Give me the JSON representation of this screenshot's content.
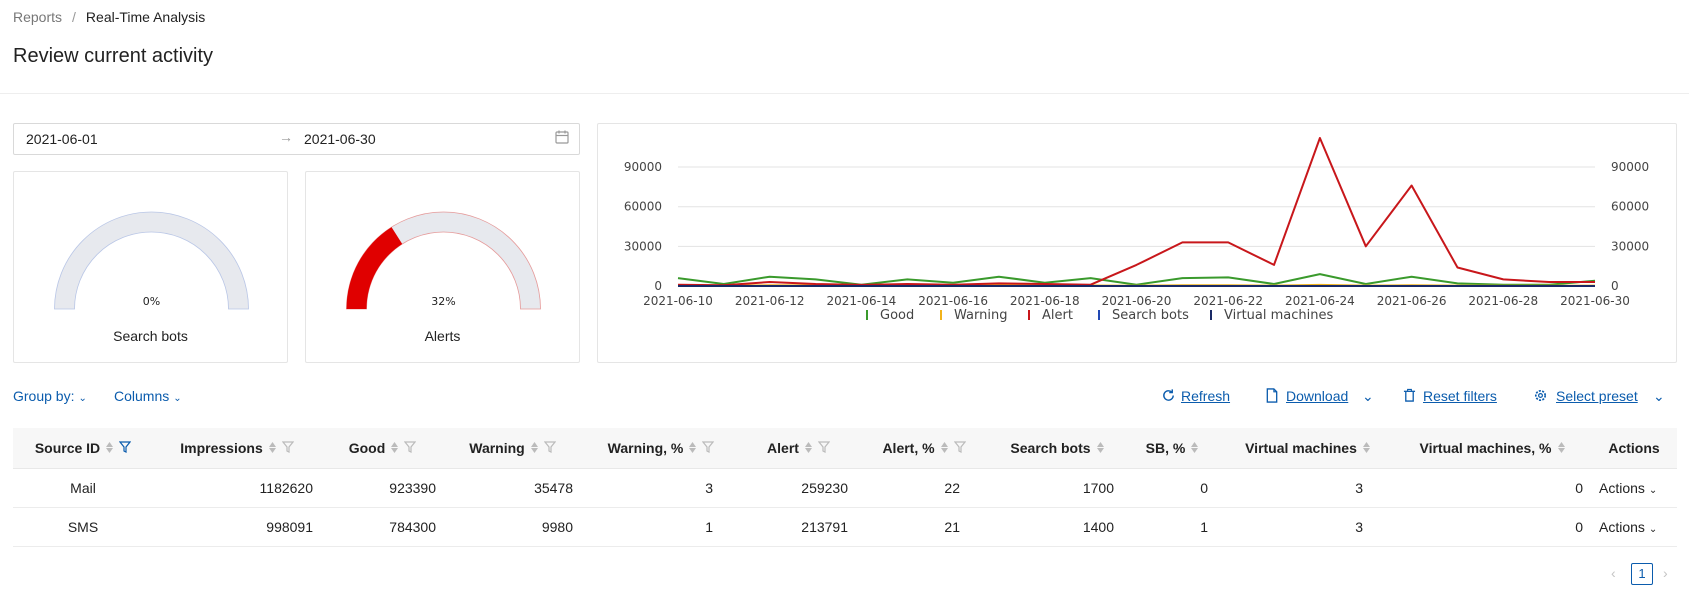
{
  "breadcrumb": {
    "parent": "Reports",
    "separator": "/",
    "current": "Real-Time Analysis"
  },
  "page_title": "Review current activity",
  "date_range": {
    "start": "2021-06-01",
    "arrow": "→",
    "end": "2021-06-30"
  },
  "gauges": [
    {
      "label": "Search bots",
      "percent_text": "0%",
      "value": 0,
      "color": "#cccccc"
    },
    {
      "label": "Alerts",
      "percent_text": "32%",
      "value": 0.32,
      "color": "#e00000"
    }
  ],
  "chart_data": {
    "type": "line",
    "x": [
      "2021-06-10",
      "2021-06-11",
      "2021-06-12",
      "2021-06-13",
      "2021-06-14",
      "2021-06-15",
      "2021-06-16",
      "2021-06-17",
      "2021-06-18",
      "2021-06-19",
      "2021-06-20",
      "2021-06-21",
      "2021-06-22",
      "2021-06-23",
      "2021-06-24",
      "2021-06-25",
      "2021-06-26",
      "2021-06-27",
      "2021-06-28",
      "2021-06-29",
      "2021-06-30"
    ],
    "x_ticks": [
      "2021-06-10",
      "2021-06-12",
      "2021-06-14",
      "2021-06-16",
      "2021-06-18",
      "2021-06-20",
      "2021-06-22",
      "2021-06-24",
      "2021-06-26",
      "2021-06-28",
      "2021-06-30"
    ],
    "y_ticks": [
      0,
      30000,
      60000,
      90000
    ],
    "ylim": [
      0,
      115000
    ],
    "grid": true,
    "legend_position": "bottom",
    "series": [
      {
        "name": "Good",
        "color": "#3a9a2c",
        "values": [
          6000,
          1500,
          7000,
          5000,
          1000,
          5000,
          2500,
          7000,
          2500,
          6000,
          1000,
          6000,
          6500,
          1500,
          9000,
          1500,
          7000,
          2000,
          1000,
          1000,
          4000
        ]
      },
      {
        "name": "Warning",
        "color": "#f2b31b",
        "values": [
          500,
          300,
          500,
          400,
          200,
          400,
          300,
          500,
          300,
          400,
          200,
          500,
          500,
          300,
          800,
          300,
          600,
          300,
          200,
          200,
          300
        ]
      },
      {
        "name": "Alert",
        "color": "#c8171b",
        "values": [
          1000,
          500,
          3000,
          1500,
          800,
          1500,
          1000,
          2000,
          1500,
          1000,
          16000,
          33000,
          33000,
          16000,
          112000,
          30000,
          76000,
          14000,
          5000,
          3000,
          3000
        ]
      },
      {
        "name": "Search bots",
        "color": "#2249b4",
        "values": [
          0,
          0,
          0,
          0,
          0,
          0,
          0,
          0,
          0,
          0,
          0,
          0,
          0,
          0,
          0,
          0,
          0,
          0,
          0,
          0,
          0
        ]
      },
      {
        "name": "Virtual machines",
        "color": "#1a2a66",
        "values": [
          0,
          0,
          0,
          0,
          0,
          0,
          0,
          0,
          0,
          0,
          0,
          0,
          0,
          0,
          0,
          0,
          0,
          0,
          0,
          0,
          0
        ]
      }
    ]
  },
  "toolbar": {
    "group_by": "Group by:",
    "columns": "Columns",
    "refresh": "Refresh",
    "download": "Download",
    "reset_filters": "Reset filters",
    "select_preset": "Select preset"
  },
  "table": {
    "columns": [
      "Source ID",
      "Impressions",
      "Good",
      "Warning",
      "Warning, %",
      "Alert",
      "Alert, %",
      "Search bots",
      "SB, %",
      "Virtual machines",
      "Virtual machines, %",
      "Actions"
    ],
    "rows": [
      {
        "source": "Mail",
        "impressions": "1182620",
        "good": "923390",
        "warning": "35478",
        "warning_pct": "3",
        "alert": "259230",
        "alert_pct": "22",
        "search_bots": "1700",
        "sb_pct": "0",
        "vm": "3",
        "vm_pct": "0",
        "actions": "Actions"
      },
      {
        "source": "SMS",
        "impressions": "998091",
        "good": "784300",
        "warning": "9980",
        "warning_pct": "1",
        "alert": "213791",
        "alert_pct": "21",
        "search_bots": "1400",
        "sb_pct": "1",
        "vm": "3",
        "vm_pct": "0",
        "actions": "Actions"
      }
    ]
  },
  "pagination": {
    "current_page": "1"
  }
}
